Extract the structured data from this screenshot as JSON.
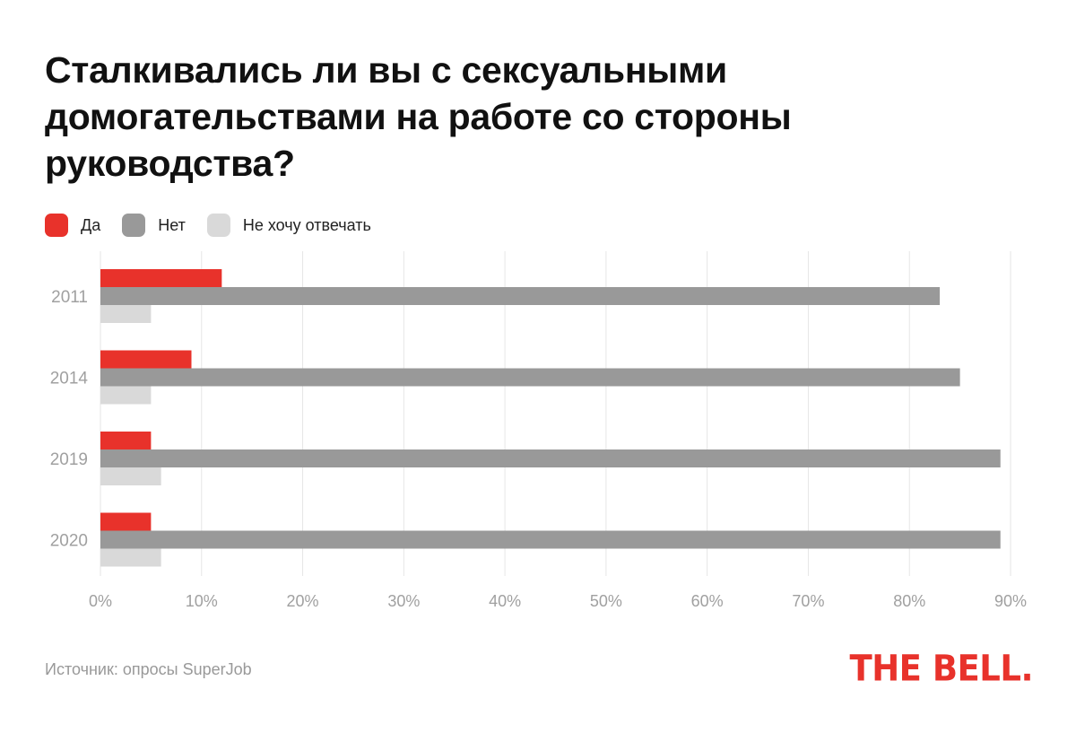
{
  "title_lines": [
    "Сталкивались ли вы с сексуальными",
    "домогательствами на работе со стороны",
    "руководства?"
  ],
  "colors": {
    "yes": "#e8322b",
    "no": "#999999",
    "no_answer": "#d9d9d9",
    "grid": "#e6e6e6",
    "tick": "#a0a0a0"
  },
  "chart_data": {
    "type": "bar",
    "orientation": "horizontal",
    "categories": [
      "2011",
      "2014",
      "2019",
      "2020"
    ],
    "series": [
      {
        "name": "Да",
        "values": [
          12,
          9,
          5,
          5
        ]
      },
      {
        "name": "Нет",
        "values": [
          83,
          85,
          89,
          89
        ]
      },
      {
        "name": "Не хочу отвечать",
        "values": [
          5,
          5,
          6,
          6
        ]
      }
    ],
    "xlim": [
      0,
      90
    ],
    "xticks": [
      "0%",
      "10%",
      "20%",
      "30%",
      "40%",
      "50%",
      "60%",
      "70%",
      "80%",
      "90%"
    ],
    "grid": true,
    "legend": "top-left"
  },
  "source": "Источник: опросы SuperJob",
  "logo": "THE BELL."
}
